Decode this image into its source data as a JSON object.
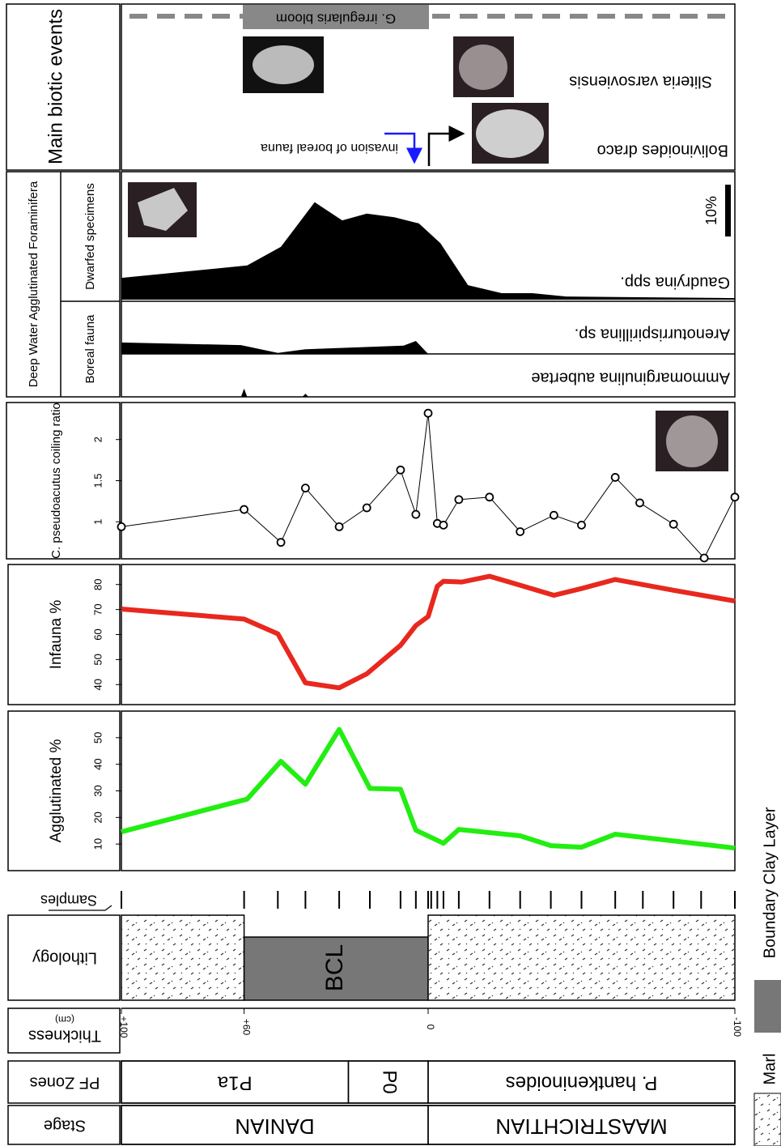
{
  "headers": {
    "biotic": "Main biotic events",
    "dwaf": "Deep Water Agglutinated Foraminifera",
    "dwarfed": "Dwarfed specimens",
    "boreal": "Boreal fauna",
    "samples": "Samples",
    "lithology": "Lithology",
    "thickness": "Thickness",
    "thickness_unit": "(cm)",
    "pf_zones": "PF Zones",
    "stage": "Stage"
  },
  "thickness_axis": {
    "lim": [
      100,
      -100
    ],
    "ticks": [
      {
        "value": 100,
        "label": "+100"
      },
      {
        "value": 60,
        "label": "+60"
      },
      0,
      -100
    ]
  },
  "stages": [
    {
      "name": "DANIAN",
      "from": 100,
      "to": 0
    },
    {
      "name": "MAASTRICHTIAN",
      "from": 0,
      "to": -100
    }
  ],
  "pf_zones": [
    {
      "name": "P1a",
      "from": 100,
      "to": 26
    },
    {
      "name": "P0",
      "from": 26,
      "to": 0
    },
    {
      "name": "P. hantkeninoides",
      "from": 0,
      "to": -100
    }
  ],
  "legend": [
    {
      "name": "Marl"
    },
    {
      "name": "Boundary Clay Layer"
    }
  ],
  "lithology": [
    {
      "legend_index": 0,
      "from": 100,
      "to": 60
    },
    {
      "legend_index": 1,
      "label": "BCL",
      "from": 60,
      "to": 0
    },
    {
      "legend_index": 0,
      "from": 0,
      "to": -100
    }
  ],
  "samples": [
    100,
    60,
    49,
    40,
    29,
    19,
    9,
    4,
    0,
    -1,
    -3,
    -5,
    -10,
    -20,
    -30,
    -40,
    -50,
    -61,
    -70,
    -80,
    -89,
    -100
  ],
  "charts": [
    {
      "type": "line",
      "axis_label": "C. pseudoacutus coiling ratio",
      "color": "#000000",
      "markers": true,
      "x": [
        100,
        60,
        48,
        40,
        29,
        20,
        9,
        4,
        0,
        -3,
        -5,
        -10,
        -20,
        -30,
        -41,
        -50,
        -61,
        -69,
        -80,
        -90,
        -100
      ],
      "values": [
        0.94,
        1.15,
        0.75,
        1.41,
        0.94,
        1.17,
        1.63,
        1.09,
        2.32,
        0.98,
        0.96,
        1.27,
        1.3,
        0.88,
        1.08,
        0.96,
        1.54,
        1.23,
        0.97,
        0.56,
        1.3
      ],
      "ylim": [
        0.55,
        2.45
      ],
      "yticks": [
        1,
        1.5,
        2
      ]
    },
    {
      "type": "line",
      "axis_label": "Infauna %",
      "color": "#e8281e",
      "markers": false,
      "x": [
        100,
        60,
        49,
        40,
        29,
        20,
        9,
        4,
        0,
        -3,
        -5,
        -11,
        -20,
        -30,
        -41,
        -50,
        -61,
        -80,
        -100
      ],
      "values": [
        70.2,
        66.2,
        60.3,
        40.7,
        38.7,
        44.3,
        55.7,
        63.6,
        67.2,
        79.3,
        81.3,
        81,
        83.3,
        79.7,
        75.7,
        78.4,
        82,
        77.7,
        73.4
      ],
      "ylim": [
        32,
        88
      ],
      "yticks": [
        40,
        50,
        60,
        70,
        80
      ]
    },
    {
      "type": "line",
      "axis_label": "Agglutinated %",
      "color": "#22ee11",
      "markers": false,
      "x": [
        100,
        59,
        48,
        40,
        29,
        19,
        9,
        4,
        -5,
        -10,
        -20,
        -30,
        -40,
        -50,
        -61,
        -100
      ],
      "values": [
        14.6,
        26.9,
        41.1,
        32.5,
        53.1,
        30.9,
        30.6,
        15.2,
        10.3,
        15.5,
        14.3,
        13.1,
        9.4,
        8.8,
        13.7,
        8.5
      ],
      "ylim": [
        0,
        60
      ],
      "yticks": [
        10,
        20,
        30,
        40,
        50
      ]
    }
  ],
  "dwaf": {
    "type": "area",
    "scale_bar": {
      "value": 10,
      "label": "10%"
    },
    "series": [
      {
        "name": "Gaudryina spp.",
        "color": "#000000",
        "x": [
          100,
          59,
          48,
          37,
          28,
          20,
          11,
          3,
          -4,
          -13,
          -24,
          -34,
          -45,
          -100
        ],
        "values": [
          4.2,
          6.6,
          10.2,
          18.8,
          15.3,
          16.6,
          15.9,
          14.7,
          10.9,
          2.8,
          1.25,
          1.25,
          0.6,
          0.3
        ]
      },
      {
        "name": "Arenoturrispirillina sp.",
        "color": "#000000",
        "x": [
          100,
          61,
          49,
          40,
          8,
          4,
          0,
          -100
        ],
        "values": [
          2.2,
          1.7,
          0.2,
          0.9,
          1.6,
          2.5,
          0,
          0
        ]
      },
      {
        "name": "Ammomarginulina aubertae",
        "color": "#000000",
        "x": [
          100,
          61,
          60,
          59,
          41,
          40,
          39,
          -100
        ],
        "values": [
          0,
          0,
          1.6,
          0,
          0,
          0.6,
          0,
          0
        ]
      }
    ]
  },
  "events": {
    "bloom": "G. irregularis bloom",
    "sliteria": "Sliteria varsoviensis",
    "bolivinoides": "Bolivinoides draco",
    "invasion": "invasion of boreal fauna"
  }
}
